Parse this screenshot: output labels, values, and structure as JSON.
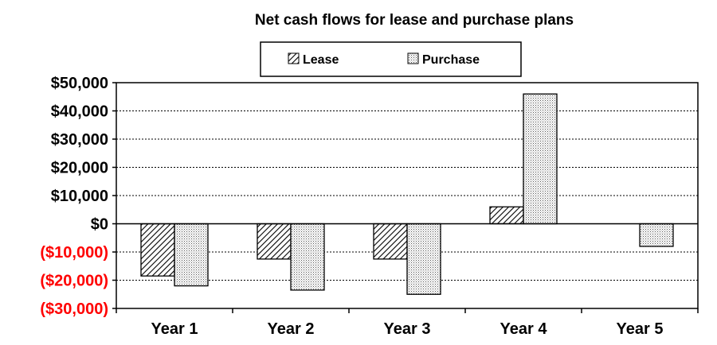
{
  "chart_data": {
    "type": "bar",
    "title": "Net cash flows for lease and purchase plans",
    "categories": [
      "Year 1",
      "Year 2",
      "Year 3",
      "Year 4",
      "Year 5"
    ],
    "series": [
      {
        "name": "Lease",
        "values": [
          -18500,
          -12500,
          -12500,
          6000,
          null
        ]
      },
      {
        "name": "Purchase",
        "values": [
          -22000,
          -23500,
          -25000,
          46000,
          -8000
        ]
      }
    ],
    "ylim": [
      -30000,
      50000
    ],
    "yticks": [
      {
        "value": 50000,
        "label": "$50,000"
      },
      {
        "value": 40000,
        "label": "$40,000"
      },
      {
        "value": 30000,
        "label": "$30,000"
      },
      {
        "value": 20000,
        "label": "$20,000"
      },
      {
        "value": 10000,
        "label": "$10,000"
      },
      {
        "value": 0,
        "label": "$0"
      },
      {
        "value": -10000,
        "label": "($10,000)"
      },
      {
        "value": -20000,
        "label": "($20,000)"
      },
      {
        "value": -30000,
        "label": "($30,000)"
      }
    ],
    "xlabel": "",
    "ylabel": "",
    "grid": true,
    "legend_position": "top",
    "colors": {
      "negative_tick": "#ff0000",
      "positive_tick": "#000000",
      "grid": "#000000"
    }
  }
}
